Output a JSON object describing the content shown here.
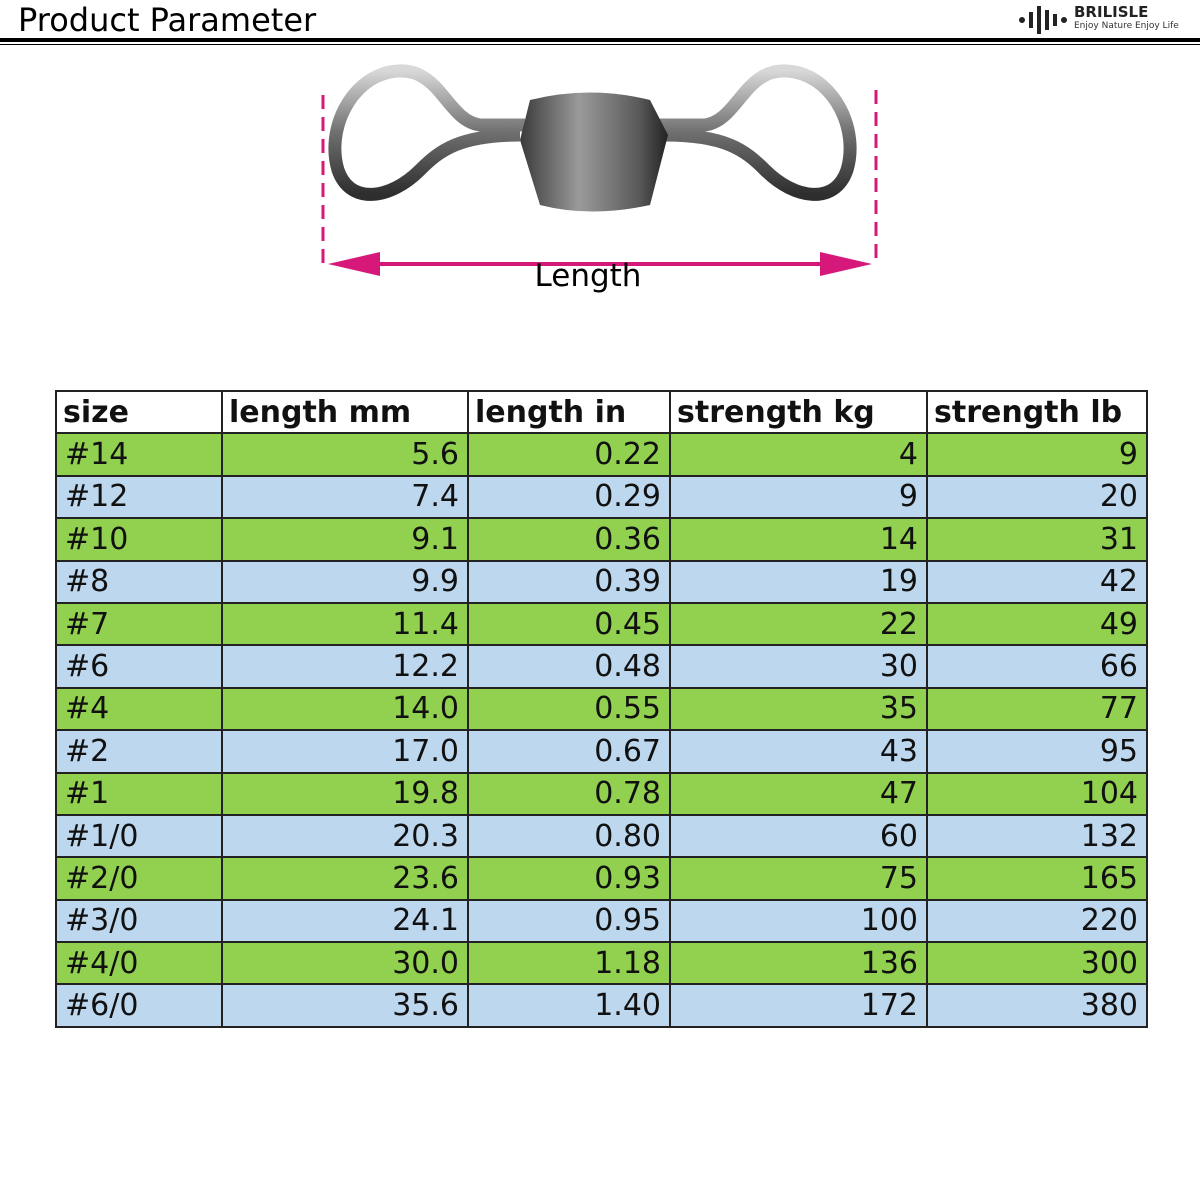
{
  "header": {
    "title": "Product Parameter"
  },
  "brand": {
    "name": "BRILISLE",
    "tagline": "Enjoy Nature Enjoy Life"
  },
  "diagram": {
    "label": "Length"
  },
  "table": {
    "columns": [
      "size",
      "length mm",
      "length in",
      "strength kg",
      "strength lb"
    ],
    "rows": [
      [
        "#14",
        "5.6",
        "0.22",
        "4",
        "9"
      ],
      [
        "#12",
        "7.4",
        "0.29",
        "9",
        "20"
      ],
      [
        "#10",
        "9.1",
        "0.36",
        "14",
        "31"
      ],
      [
        "#8",
        "9.9",
        "0.39",
        "19",
        "42"
      ],
      [
        "#7",
        "11.4",
        "0.45",
        "22",
        "49"
      ],
      [
        "#6",
        "12.2",
        "0.48",
        "30",
        "66"
      ],
      [
        "#4",
        "14.0",
        "0.55",
        "35",
        "77"
      ],
      [
        "#2",
        "17.0",
        "0.67",
        "43",
        "95"
      ],
      [
        "#1",
        "19.8",
        "0.78",
        "47",
        "104"
      ],
      [
        "#1/0",
        "20.3",
        "0.80",
        "60",
        "132"
      ],
      [
        "#2/0",
        "23.6",
        "0.93",
        "75",
        "165"
      ],
      [
        "#3/0",
        "24.1",
        "0.95",
        "100",
        "220"
      ],
      [
        "#4/0",
        "30.0",
        "1.18",
        "136",
        "300"
      ],
      [
        "#6/0",
        "35.6",
        "1.40",
        "172",
        "380"
      ]
    ]
  }
}
